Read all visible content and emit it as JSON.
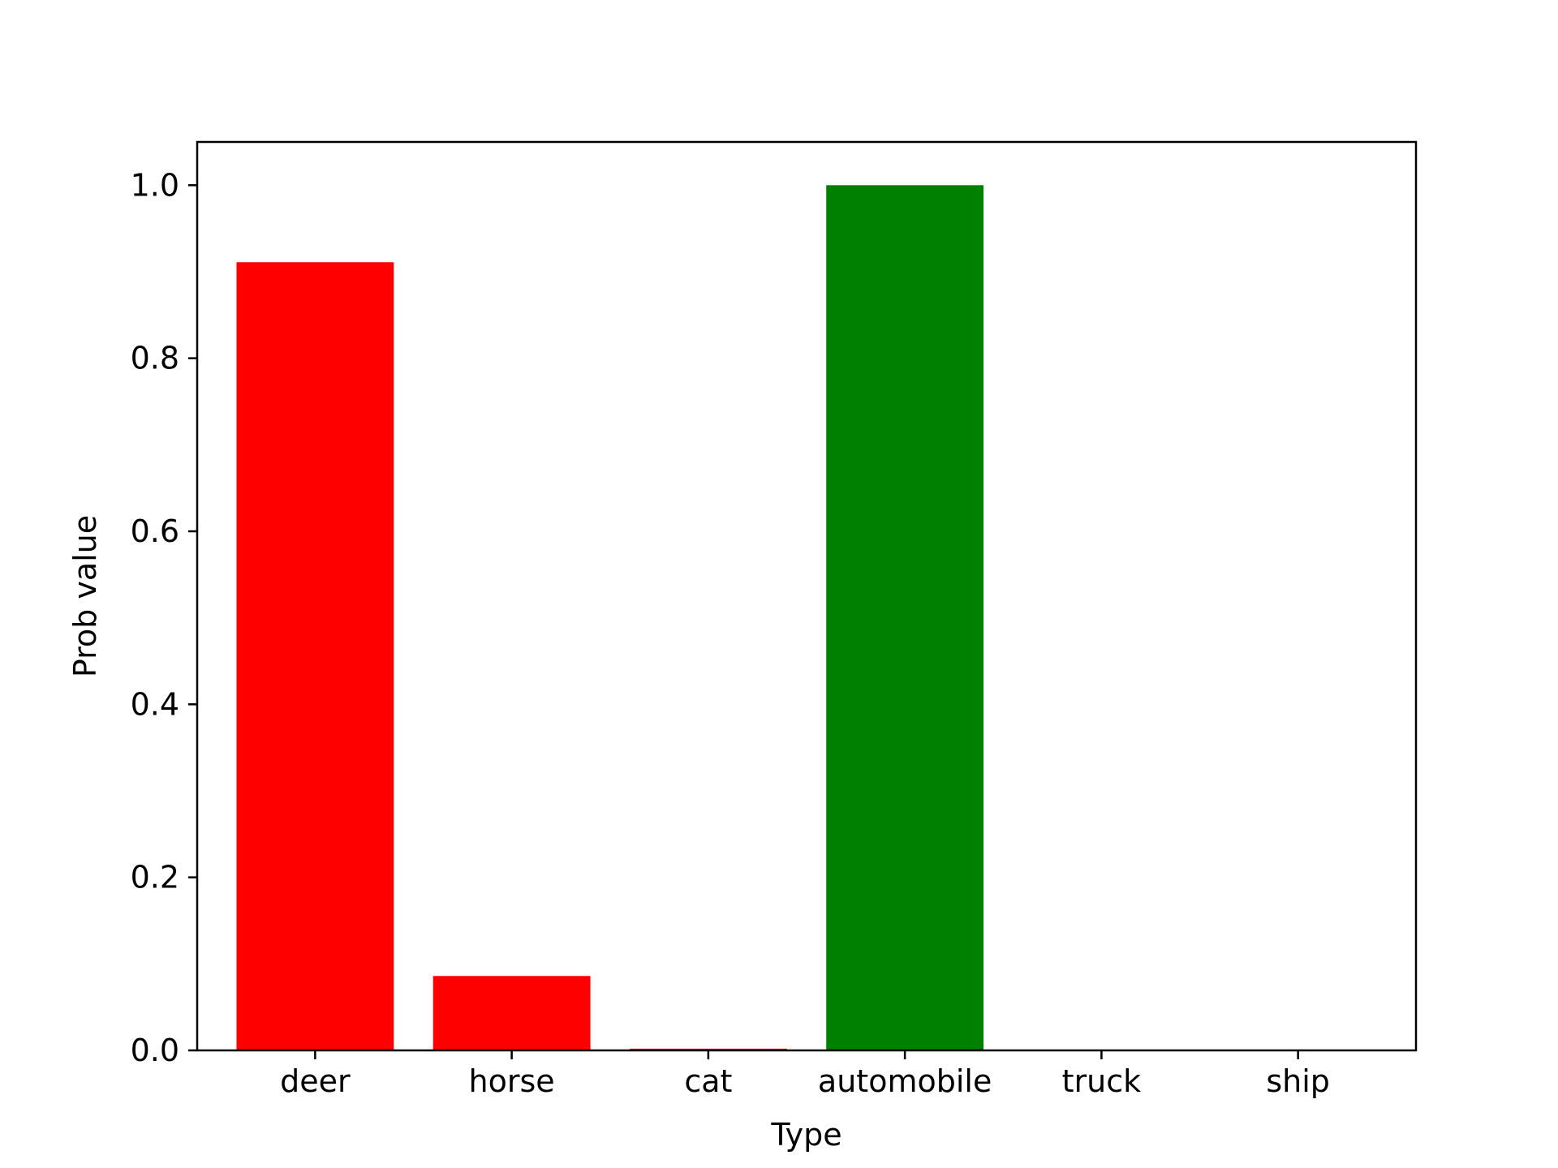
{
  "chart_data": {
    "type": "bar",
    "categories": [
      "deer",
      "horse",
      "cat",
      "automobile",
      "truck",
      "ship"
    ],
    "values": [
      0.911,
      0.086,
      0.002,
      1.0,
      0.0,
      0.0
    ],
    "bar_colors": [
      "#ff0000",
      "#ff0000",
      "#ff0000",
      "#008000",
      "#ff0000",
      "#ff0000"
    ],
    "title": "",
    "xlabel": "Type",
    "ylabel": "Prob value",
    "ylim": [
      0,
      1.05
    ],
    "yticks": [
      0.0,
      0.2,
      0.4,
      0.6,
      0.8,
      1.0
    ],
    "ytick_labels": [
      "0.0",
      "0.2",
      "0.4",
      "0.6",
      "0.8",
      "1.0"
    ],
    "grid": false,
    "legend": null
  }
}
